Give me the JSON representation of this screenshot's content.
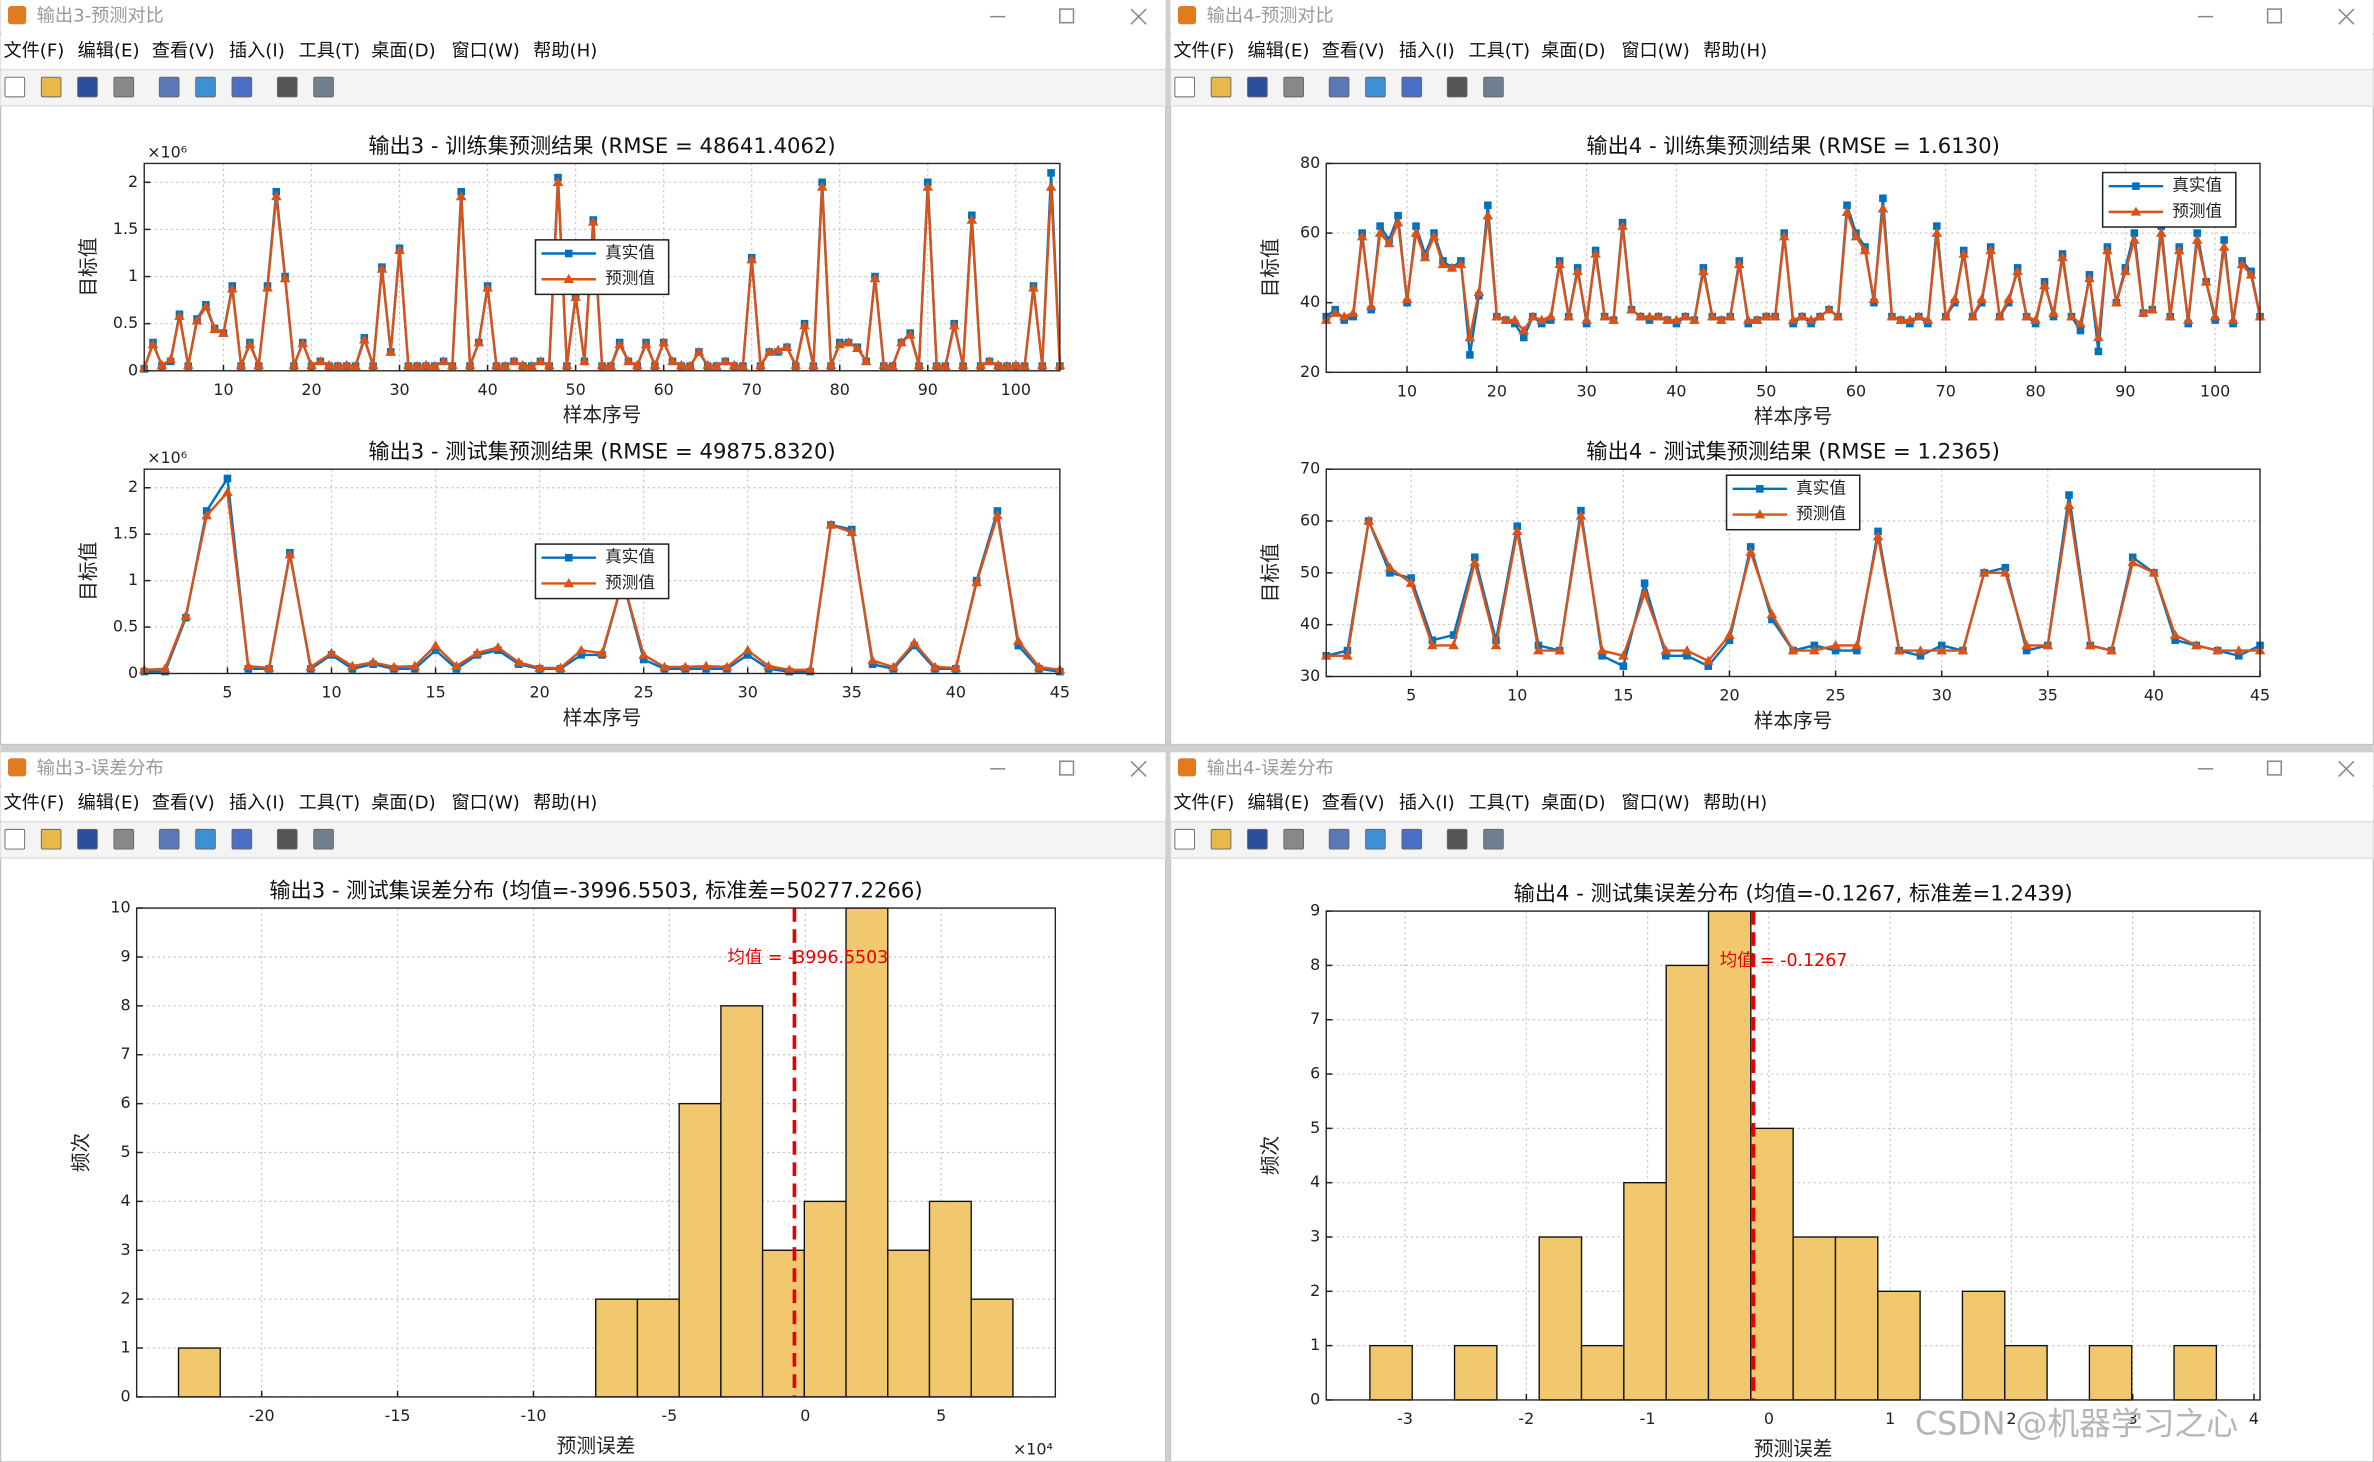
{
  "windows": [
    {
      "title": "输出3-预测对比"
    },
    {
      "title": "输出4-预测对比"
    },
    {
      "title": "输出3-误差分布"
    },
    {
      "title": "输出4-误差分布"
    }
  ],
  "menus": [
    "文件(F)",
    "编辑(E)",
    "查看(V)",
    "插入(I)",
    "工具(T)",
    "桌面(D)",
    "窗口(W)",
    "帮助(H)"
  ],
  "watermark": "CSDN @机器学习之心",
  "chart_data": [
    {
      "type": "line",
      "title": "输出3 - 训练集预测结果 (RMSE = 48641.4062)",
      "xlabel": "样本序号",
      "ylabel": "目标值",
      "y_exponent": "×10⁶",
      "xlim": [
        1,
        105
      ],
      "ylim": [
        0,
        2.2
      ],
      "xticks": [
        10,
        20,
        30,
        40,
        50,
        60,
        70,
        80,
        90,
        100
      ],
      "yticks": [
        0,
        0.5,
        1,
        1.5,
        2
      ],
      "grid": true,
      "legend": "center",
      "x": [
        1,
        2,
        3,
        4,
        5,
        6,
        7,
        8,
        9,
        10,
        11,
        12,
        13,
        14,
        15,
        16,
        17,
        18,
        19,
        20,
        21,
        22,
        23,
        24,
        25,
        26,
        27,
        28,
        29,
        30,
        31,
        32,
        33,
        34,
        35,
        36,
        37,
        38,
        39,
        40,
        41,
        42,
        43,
        44,
        45,
        46,
        47,
        48,
        49,
        50,
        51,
        52,
        53,
        54,
        55,
        56,
        57,
        58,
        59,
        60,
        61,
        62,
        63,
        64,
        65,
        66,
        67,
        68,
        69,
        70,
        71,
        72,
        73,
        74,
        75,
        76,
        77,
        78,
        79,
        80,
        81,
        82,
        83,
        84,
        85,
        86,
        87,
        88,
        89,
        90,
        91,
        92,
        93,
        94,
        95,
        96,
        97,
        98,
        99,
        100,
        101,
        102,
        103,
        104,
        105
      ],
      "series": [
        {
          "name": "真实值",
          "color": "#0072BD",
          "marker": "square",
          "values": [
            0.02,
            0.3,
            0.05,
            0.1,
            0.6,
            0.05,
            0.55,
            0.7,
            0.45,
            0.4,
            0.9,
            0.05,
            0.3,
            0.05,
            0.9,
            1.9,
            1.0,
            0.05,
            0.3,
            0.05,
            0.1,
            0.05,
            0.05,
            0.05,
            0.05,
            0.35,
            0.05,
            1.1,
            0.2,
            1.3,
            0.05,
            0.05,
            0.05,
            0.05,
            0.1,
            0.05,
            1.9,
            0.05,
            0.3,
            0.9,
            0.05,
            0.05,
            0.1,
            0.05,
            0.05,
            0.1,
            0.05,
            2.05,
            0.05,
            0.8,
            0.1,
            1.6,
            0.05,
            0.05,
            0.3,
            0.1,
            0.05,
            0.3,
            0.05,
            0.3,
            0.1,
            0.05,
            0.05,
            0.2,
            0.05,
            0.05,
            0.1,
            0.05,
            0.05,
            1.2,
            0.05,
            0.2,
            0.2,
            0.25,
            0.05,
            0.5,
            0.05,
            2.0,
            0.05,
            0.3,
            0.3,
            0.25,
            0.1,
            1.0,
            0.05,
            0.05,
            0.3,
            0.4,
            0.05,
            2.0,
            0.05,
            0.05,
            0.5,
            0.05,
            1.65,
            0.05,
            0.1,
            0.05,
            0.05,
            0.05,
            0.05,
            0.9,
            0.05,
            2.1,
            0.05
          ]
        },
        {
          "name": "预测值",
          "color": "#D95319",
          "marker": "triangle",
          "values": [
            0.03,
            0.28,
            0.06,
            0.12,
            0.58,
            0.06,
            0.53,
            0.68,
            0.44,
            0.4,
            0.87,
            0.06,
            0.28,
            0.06,
            0.88,
            1.85,
            0.98,
            0.06,
            0.29,
            0.06,
            0.1,
            0.06,
            0.05,
            0.06,
            0.05,
            0.33,
            0.06,
            1.08,
            0.2,
            1.28,
            0.06,
            0.05,
            0.06,
            0.05,
            0.1,
            0.06,
            1.85,
            0.06,
            0.3,
            0.88,
            0.06,
            0.05,
            0.1,
            0.06,
            0.05,
            0.1,
            0.06,
            2.0,
            0.06,
            0.78,
            0.1,
            1.58,
            0.06,
            0.05,
            0.28,
            0.1,
            0.06,
            0.28,
            0.06,
            0.3,
            0.1,
            0.06,
            0.05,
            0.2,
            0.06,
            0.05,
            0.1,
            0.06,
            0.05,
            1.18,
            0.06,
            0.2,
            0.22,
            0.25,
            0.06,
            0.48,
            0.06,
            1.95,
            0.06,
            0.28,
            0.3,
            0.24,
            0.1,
            0.98,
            0.06,
            0.05,
            0.3,
            0.38,
            0.06,
            1.95,
            0.06,
            0.05,
            0.48,
            0.06,
            1.6,
            0.06,
            0.1,
            0.06,
            0.05,
            0.06,
            0.05,
            0.88,
            0.06,
            1.95,
            0.06
          ]
        }
      ]
    },
    {
      "type": "line",
      "title": "输出3 - 测试集预测结果 (RMSE = 49875.8320)",
      "xlabel": "样本序号",
      "ylabel": "目标值",
      "y_exponent": "×10⁶",
      "xlim": [
        1,
        45
      ],
      "ylim": [
        0,
        2.2
      ],
      "xticks": [
        5,
        10,
        15,
        20,
        25,
        30,
        35,
        40,
        45
      ],
      "yticks": [
        0,
        0.5,
        1,
        1.5,
        2
      ],
      "grid": true,
      "legend": "center",
      "x": [
        1,
        2,
        3,
        4,
        5,
        6,
        7,
        8,
        9,
        10,
        11,
        12,
        13,
        14,
        15,
        16,
        17,
        18,
        19,
        20,
        21,
        22,
        23,
        24,
        25,
        26,
        27,
        28,
        29,
        30,
        31,
        32,
        33,
        34,
        35,
        36,
        37,
        38,
        39,
        40,
        41,
        42,
        43,
        44,
        45
      ],
      "series": [
        {
          "name": "真实值",
          "color": "#0072BD",
          "marker": "square",
          "values": [
            0.02,
            0.02,
            0.6,
            1.75,
            2.1,
            0.05,
            0.05,
            1.3,
            0.05,
            0.2,
            0.05,
            0.1,
            0.05,
            0.05,
            0.25,
            0.05,
            0.2,
            0.25,
            0.1,
            0.05,
            0.05,
            0.2,
            0.2,
            1.0,
            0.15,
            0.05,
            0.05,
            0.05,
            0.05,
            0.2,
            0.05,
            0.02,
            0.02,
            1.6,
            1.55,
            0.1,
            0.05,
            0.3,
            0.05,
            0.05,
            1.0,
            1.75,
            0.3,
            0.05,
            0.02
          ]
        },
        {
          "name": "预测值",
          "color": "#D95319",
          "marker": "triangle",
          "values": [
            0.04,
            0.05,
            0.62,
            1.7,
            1.95,
            0.08,
            0.06,
            1.28,
            0.07,
            0.22,
            0.08,
            0.12,
            0.07,
            0.08,
            0.3,
            0.08,
            0.22,
            0.28,
            0.12,
            0.06,
            0.06,
            0.25,
            0.22,
            1.0,
            0.2,
            0.07,
            0.07,
            0.08,
            0.07,
            0.25,
            0.08,
            0.04,
            0.04,
            1.6,
            1.52,
            0.14,
            0.07,
            0.33,
            0.07,
            0.06,
            0.98,
            1.7,
            0.35,
            0.07,
            0.04
          ]
        }
      ]
    },
    {
      "type": "line",
      "title": "输出4 - 训练集预测结果 (RMSE = 1.6130)",
      "xlabel": "样本序号",
      "ylabel": "目标值",
      "xlim": [
        1,
        105
      ],
      "ylim": [
        20,
        80
      ],
      "xticks": [
        10,
        20,
        30,
        40,
        50,
        60,
        70,
        80,
        90,
        100
      ],
      "yticks": [
        20,
        40,
        60,
        80
      ],
      "grid": true,
      "legend": "northeast",
      "x": [
        1,
        2,
        3,
        4,
        5,
        6,
        7,
        8,
        9,
        10,
        11,
        12,
        13,
        14,
        15,
        16,
        17,
        18,
        19,
        20,
        21,
        22,
        23,
        24,
        25,
        26,
        27,
        28,
        29,
        30,
        31,
        32,
        33,
        34,
        35,
        36,
        37,
        38,
        39,
        40,
        41,
        42,
        43,
        44,
        45,
        46,
        47,
        48,
        49,
        50,
        51,
        52,
        53,
        54,
        55,
        56,
        57,
        58,
        59,
        60,
        61,
        62,
        63,
        64,
        65,
        66,
        67,
        68,
        69,
        70,
        71,
        72,
        73,
        74,
        75,
        76,
        77,
        78,
        79,
        80,
        81,
        82,
        83,
        84,
        85,
        86,
        87,
        88,
        89,
        90,
        91,
        92,
        93,
        94,
        95,
        96,
        97,
        98,
        99,
        100,
        101,
        102,
        103,
        104,
        105
      ],
      "series": [
        {
          "name": "真实值",
          "color": "#0072BD",
          "marker": "square",
          "values": [
            36,
            38,
            35,
            36,
            60,
            38,
            62,
            58,
            65,
            40,
            62,
            54,
            60,
            52,
            50,
            52,
            25,
            42,
            68,
            36,
            35,
            34,
            30,
            36,
            34,
            35,
            52,
            36,
            50,
            34,
            55,
            36,
            35,
            63,
            38,
            36,
            35,
            36,
            35,
            34,
            36,
            35,
            50,
            36,
            35,
            36,
            52,
            34,
            35,
            36,
            36,
            60,
            34,
            36,
            34,
            36,
            38,
            36,
            68,
            60,
            56,
            40,
            70,
            36,
            35,
            34,
            36,
            34,
            62,
            36,
            40,
            55,
            36,
            40,
            56,
            36,
            40,
            50,
            36,
            34,
            46,
            36,
            54,
            36,
            32,
            48,
            26,
            56,
            40,
            50,
            60,
            37,
            38,
            62,
            36,
            56,
            34,
            60,
            46,
            35,
            58,
            34,
            52,
            49,
            36
          ]
        },
        {
          "name": "预测值",
          "color": "#D95319",
          "marker": "triangle",
          "values": [
            35,
            37,
            36,
            37,
            59,
            39,
            60,
            57,
            63,
            41,
            60,
            53,
            59,
            51,
            50,
            51,
            30,
            43,
            65,
            36,
            35,
            35,
            32,
            36,
            35,
            36,
            51,
            36,
            49,
            35,
            54,
            36,
            35,
            62,
            38,
            36,
            36,
            36,
            35,
            35,
            36,
            35,
            49,
            36,
            35,
            36,
            51,
            35,
            35,
            36,
            36,
            59,
            35,
            36,
            35,
            36,
            38,
            36,
            66,
            59,
            55,
            41,
            67,
            36,
            35,
            35,
            36,
            35,
            60,
            36,
            41,
            54,
            36,
            41,
            55,
            36,
            41,
            49,
            36,
            35,
            45,
            37,
            53,
            36,
            34,
            47,
            30,
            55,
            40,
            49,
            58,
            37,
            38,
            60,
            36,
            55,
            35,
            58,
            46,
            36,
            56,
            35,
            51,
            48,
            36
          ]
        }
      ]
    },
    {
      "type": "line",
      "title": "输出4 - 测试集预测结果 (RMSE = 1.2365)",
      "xlabel": "样本序号",
      "ylabel": "目标值",
      "xlim": [
        1,
        45
      ],
      "ylim": [
        30,
        70
      ],
      "xticks": [
        5,
        10,
        15,
        20,
        25,
        30,
        35,
        40,
        45
      ],
      "yticks": [
        30,
        40,
        50,
        60,
        70
      ],
      "grid": true,
      "legend": "north",
      "x": [
        1,
        2,
        3,
        4,
        5,
        6,
        7,
        8,
        9,
        10,
        11,
        12,
        13,
        14,
        15,
        16,
        17,
        18,
        19,
        20,
        21,
        22,
        23,
        24,
        25,
        26,
        27,
        28,
        29,
        30,
        31,
        32,
        33,
        34,
        35,
        36,
        37,
        38,
        39,
        40,
        41,
        42,
        43,
        44,
        45
      ],
      "series": [
        {
          "name": "真实值",
          "color": "#0072BD",
          "marker": "square",
          "values": [
            34,
            35,
            60,
            50,
            49,
            37,
            38,
            53,
            37,
            59,
            36,
            35,
            62,
            34,
            32,
            48,
            34,
            34,
            32,
            37,
            55,
            41,
            35,
            36,
            35,
            35,
            58,
            35,
            34,
            36,
            35,
            50,
            51,
            35,
            36,
            65,
            36,
            35,
            53,
            50,
            37,
            36,
            35,
            34,
            36
          ]
        },
        {
          "name": "预测值",
          "color": "#D95319",
          "marker": "triangle",
          "values": [
            34,
            34,
            60,
            51,
            48,
            36,
            36,
            52,
            36,
            58,
            35,
            35,
            61,
            35,
            34,
            46,
            35,
            35,
            33,
            38,
            54,
            42,
            35,
            35,
            36,
            36,
            57,
            35,
            35,
            35,
            35,
            50,
            50,
            36,
            36,
            63,
            36,
            35,
            52,
            50,
            38,
            36,
            35,
            35,
            35
          ]
        }
      ]
    },
    {
      "type": "histogram",
      "title": "输出3 - 测试集误差分布 (均值=-3996.5503, 标准差=50277.2266)",
      "xlabel": "预测误差",
      "ylabel": "频次",
      "x_exponent": "×10⁴",
      "color": "#F2C86F",
      "xlim": [
        -24.6,
        9.2
      ],
      "ylim": [
        0,
        10
      ],
      "xticks": [
        -20,
        -15,
        -10,
        -5,
        0,
        5
      ],
      "yticks": [
        0,
        1,
        2,
        3,
        4,
        5,
        6,
        7,
        8,
        9,
        10
      ],
      "grid": true,
      "bins": [
        -23.06,
        -21.525,
        -19.99,
        -18.455,
        -16.92,
        -15.385,
        -13.85,
        -12.315,
        -10.78,
        -9.245,
        -7.71,
        -6.175,
        -4.64,
        -3.105,
        -1.57,
        -0.035,
        1.5,
        3.035,
        4.57,
        6.105,
        7.64
      ],
      "counts": [
        1,
        0,
        0,
        0,
        0,
        0,
        0,
        0,
        0,
        0,
        2,
        2,
        6,
        8,
        3,
        4,
        10,
        3,
        4,
        2
      ],
      "mean_line": {
        "value": -0.39965503,
        "label": "均值 = -3996.5503",
        "color": "#E60000"
      }
    },
    {
      "type": "histogram",
      "title": "输出4 - 测试集误差分布 (均值=-0.1267, 标准差=1.2439)",
      "xlabel": "预测误差",
      "ylabel": "频次",
      "color": "#F2C86F",
      "xlim": [
        -3.65,
        4.05
      ],
      "ylim": [
        0,
        9
      ],
      "xticks": [
        -3,
        -2,
        -1,
        0,
        1,
        2,
        3,
        4
      ],
      "yticks": [
        0,
        1,
        2,
        3,
        4,
        5,
        6,
        7,
        8,
        9
      ],
      "grid": true,
      "bins": [
        -3.29,
        -2.941,
        -2.592,
        -2.243,
        -1.894,
        -1.545,
        -1.196,
        -0.847,
        -0.498,
        -0.149,
        0.2,
        0.549,
        0.898,
        1.247,
        1.596,
        1.945,
        2.294,
        2.643,
        2.992,
        3.341,
        3.69
      ],
      "counts": [
        1,
        0,
        1,
        0,
        3,
        1,
        4,
        8,
        9,
        5,
        3,
        3,
        2,
        0,
        2,
        1,
        0,
        1,
        0,
        1
      ],
      "mean_line": {
        "value": -0.1267,
        "label": "均值 = -0.1267",
        "color": "#E60000"
      }
    }
  ]
}
